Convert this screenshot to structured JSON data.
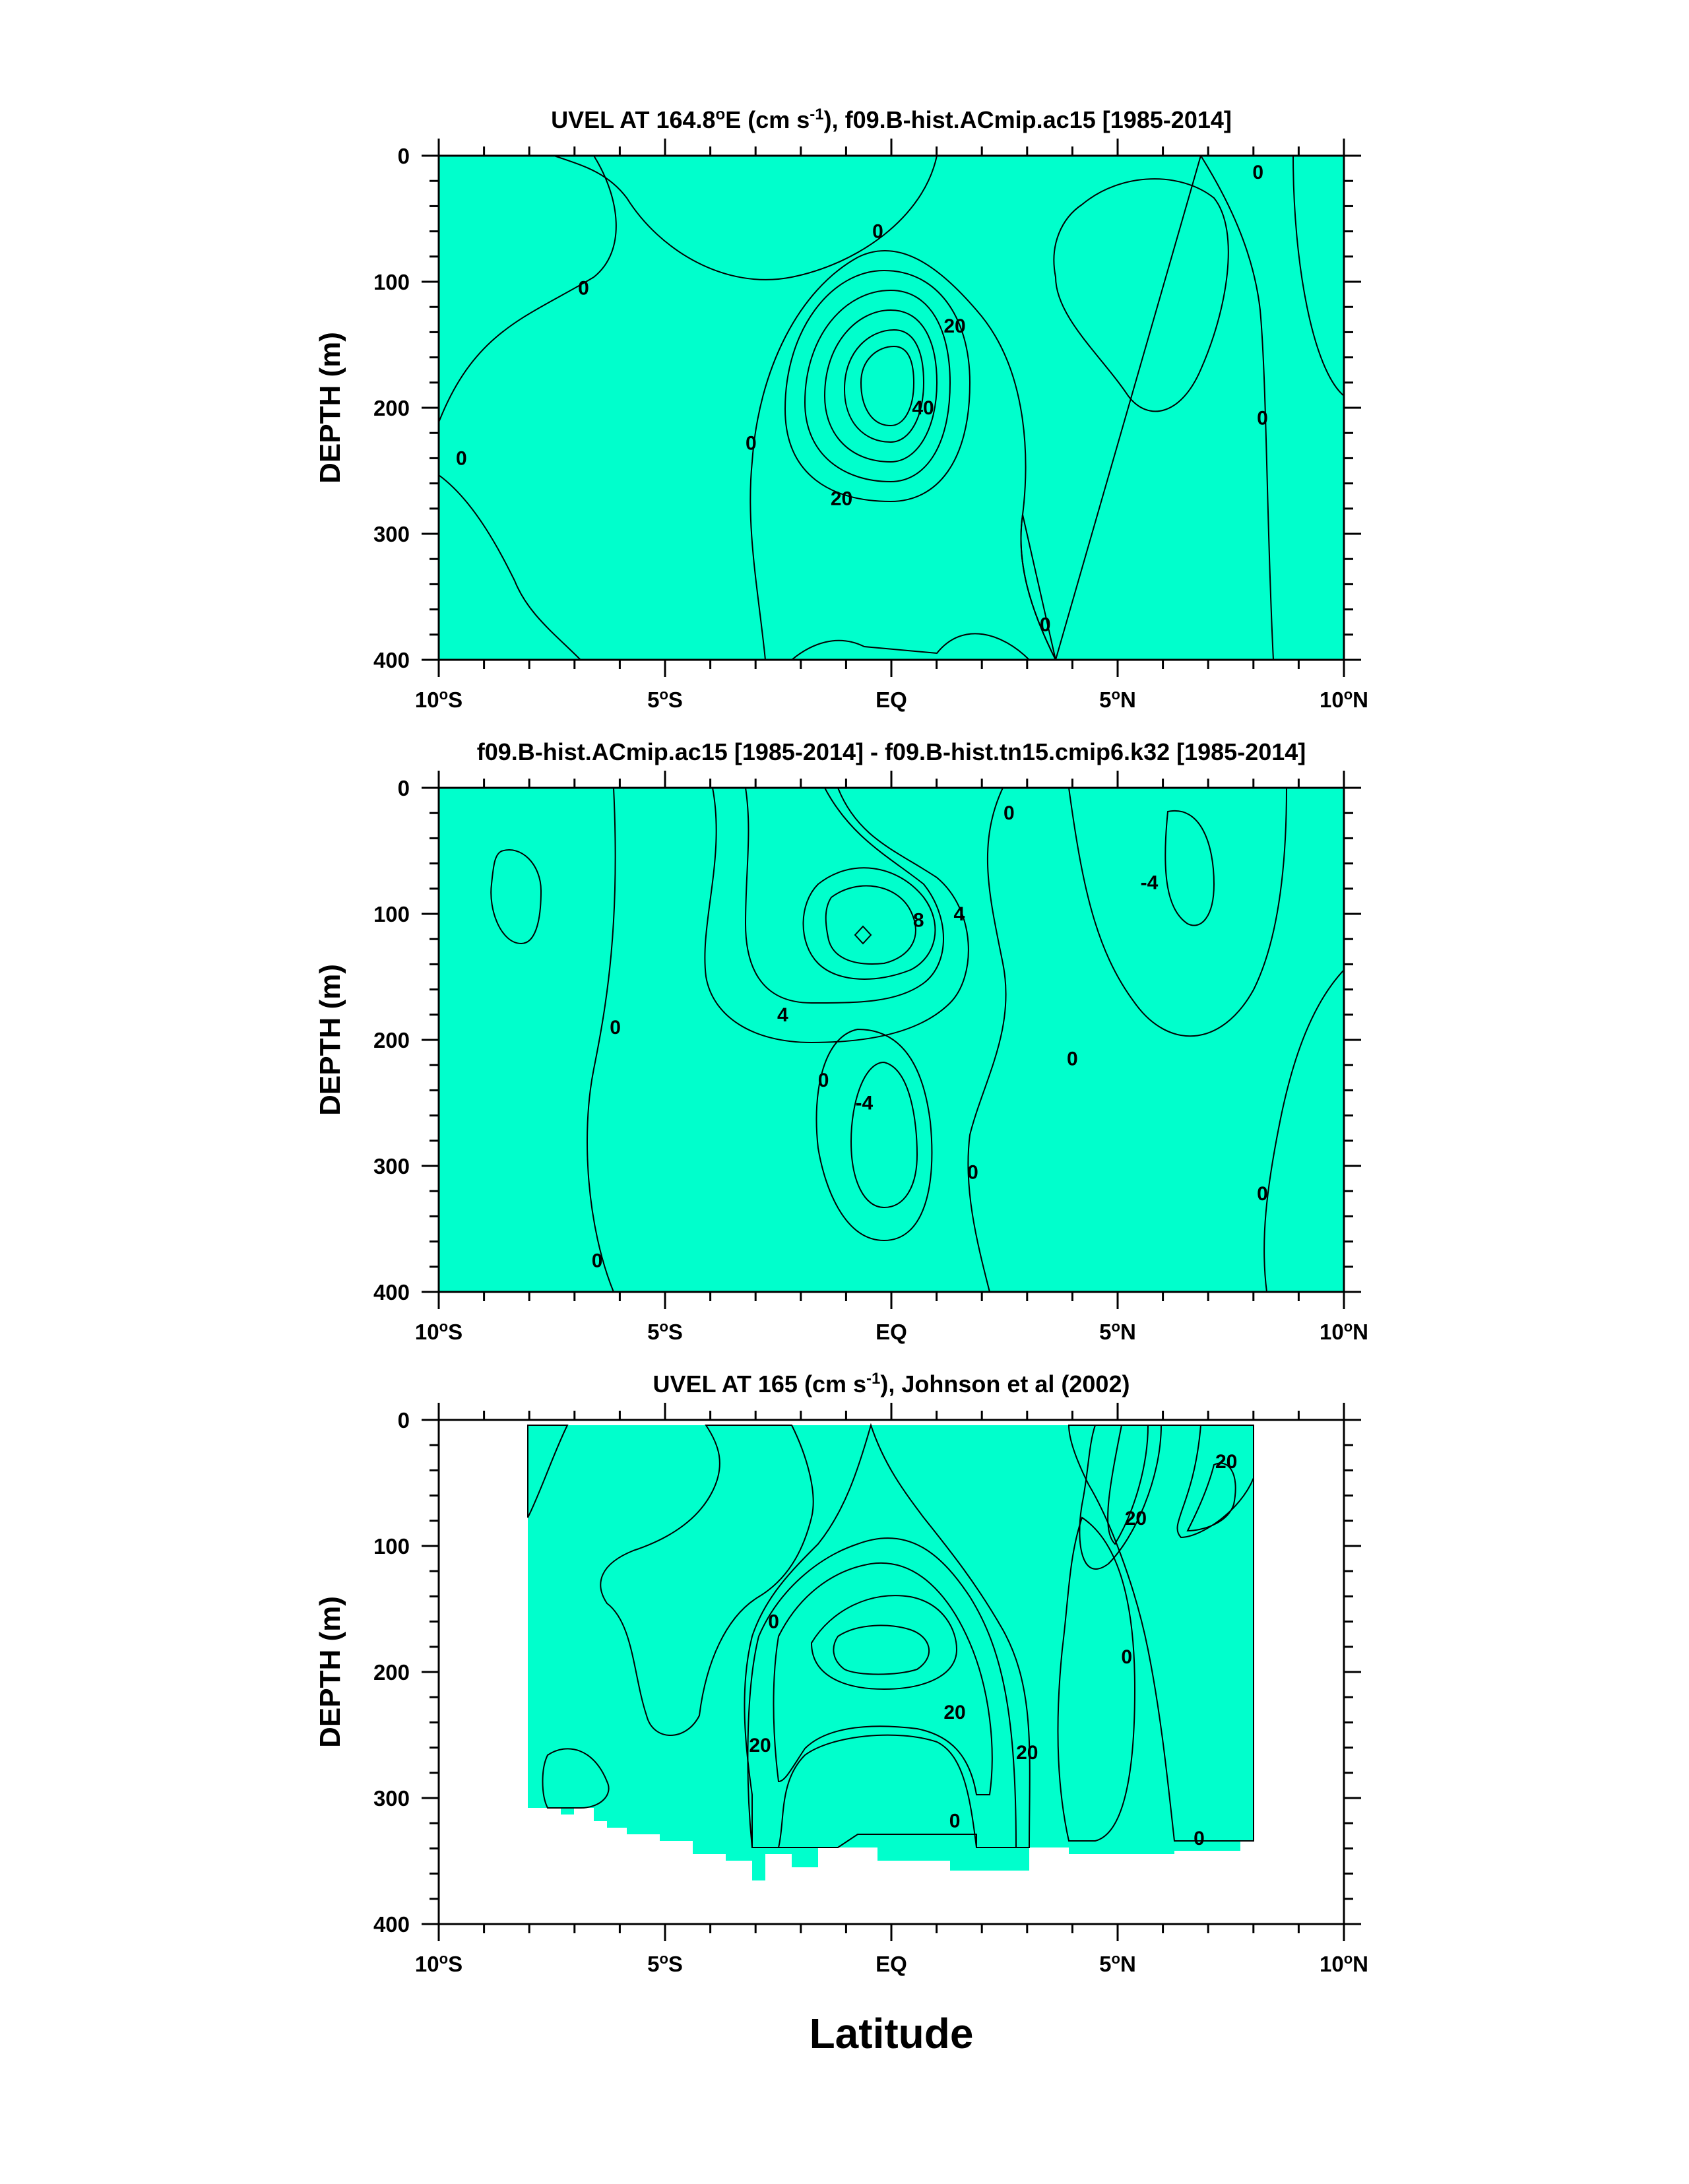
{
  "figure": {
    "x_axis_label": "Latitude",
    "colors": {
      "band_neg": "#00eeee",
      "band_zero": "#00ffcc",
      "band_low": "#00ee22",
      "band_mid": "#66ff00",
      "band_high": "#ffff00",
      "band_higher": "#ffcc33",
      "band_max": "#ff9933",
      "band_min": "#22ccff"
    }
  },
  "chart_data": [
    {
      "type": "contour",
      "id": "model",
      "title": "UVEL AT 164.8°E (cm s-1), f09.B-hist.ACmip.ac15 [1985-2014]",
      "title_parts": [
        "UVEL AT 164.8",
        "o",
        "E (cm s",
        "-1",
        "), f09.B-hist.ACmip.ac15 [1985-2014]"
      ],
      "ylabel": "DEPTH (m)",
      "xlim": [
        -10,
        10
      ],
      "ylim": [
        400,
        0
      ],
      "x_ticks": [
        -10,
        -5,
        0,
        5,
        10
      ],
      "x_tick_labels": [
        "10°S",
        "5°S",
        "EQ",
        "5°N",
        "10°N"
      ],
      "y_ticks": [
        0,
        100,
        200,
        300,
        400
      ],
      "y_tick_labels": [
        "0",
        "100",
        "200",
        "300",
        "400"
      ],
      "contour_labels": [
        {
          "text": "0",
          "lat": -6.8,
          "depth": 105
        },
        {
          "text": "0",
          "lat": -9.5,
          "depth": 240
        },
        {
          "text": "0",
          "lat": -3.1,
          "depth": 228
        },
        {
          "text": "0",
          "lat": -0.3,
          "depth": 60
        },
        {
          "text": "20",
          "lat": 1.4,
          "depth": 135
        },
        {
          "text": "40",
          "lat": 0.7,
          "depth": 200
        },
        {
          "text": "20",
          "lat": -1.1,
          "depth": 272
        },
        {
          "text": "0",
          "lat": 3.4,
          "depth": 372
        },
        {
          "text": "0",
          "lat": 8.1,
          "depth": 13
        },
        {
          "text": "0",
          "lat": 8.2,
          "depth": 208
        }
      ]
    },
    {
      "type": "contour",
      "id": "difference",
      "title": "f09.B-hist.ACmip.ac15 [1985-2014] - f09.B-hist.tn15.cmip6.k32 [1985-2014]",
      "ylabel": "DEPTH (m)",
      "xlim": [
        -10,
        10
      ],
      "ylim": [
        400,
        0
      ],
      "x_ticks": [
        -10,
        -5,
        0,
        5,
        10
      ],
      "x_tick_labels": [
        "10°S",
        "5°S",
        "EQ",
        "5°N",
        "10°N"
      ],
      "y_ticks": [
        0,
        100,
        200,
        300,
        400
      ],
      "y_tick_labels": [
        "0",
        "100",
        "200",
        "300",
        "400"
      ],
      "contour_labels": [
        {
          "text": "0",
          "lat": -6.1,
          "depth": 190
        },
        {
          "text": "0",
          "lat": -6.5,
          "depth": 375
        },
        {
          "text": "4",
          "lat": -2.4,
          "depth": 180
        },
        {
          "text": "8",
          "lat": 0.6,
          "depth": 105
        },
        {
          "text": "4",
          "lat": 1.5,
          "depth": 100
        },
        {
          "text": "0",
          "lat": 2.6,
          "depth": 20
        },
        {
          "text": "-4",
          "lat": 5.7,
          "depth": 75
        },
        {
          "text": "0",
          "lat": 4.0,
          "depth": 215
        },
        {
          "text": "0",
          "lat": -1.5,
          "depth": 232
        },
        {
          "text": "-4",
          "lat": -0.6,
          "depth": 250
        },
        {
          "text": "0",
          "lat": 1.8,
          "depth": 305
        },
        {
          "text": "0",
          "lat": 8.2,
          "depth": 322
        }
      ]
    },
    {
      "type": "contour",
      "id": "observed",
      "title": "UVEL AT 165 (cm s-1), Johnson et al (2002)",
      "title_parts": [
        "UVEL AT 165 (cm s",
        "-1",
        "), Johnson et al (2002)"
      ],
      "ylabel": "DEPTH (m)",
      "xlim": [
        -10,
        10
      ],
      "ylim": [
        400,
        0
      ],
      "data_lat_range": [
        -8,
        8
      ],
      "x_ticks": [
        -10,
        -5,
        0,
        5,
        10
      ],
      "x_tick_labels": [
        "10°S",
        "5°S",
        "EQ",
        "5°N",
        "10°N"
      ],
      "y_ticks": [
        0,
        100,
        200,
        300,
        400
      ],
      "y_tick_labels": [
        "0",
        "100",
        "200",
        "300",
        "400"
      ],
      "contour_labels": [
        {
          "text": "0",
          "lat": -2.6,
          "depth": 160
        },
        {
          "text": "20",
          "lat": -2.9,
          "depth": 258
        },
        {
          "text": "20",
          "lat": 1.4,
          "depth": 232
        },
        {
          "text": "20",
          "lat": 3.0,
          "depth": 264
        },
        {
          "text": "0",
          "lat": 1.4,
          "depth": 318
        },
        {
          "text": "20",
          "lat": 5.4,
          "depth": 78
        },
        {
          "text": "20",
          "lat": 7.4,
          "depth": 33
        },
        {
          "text": "0",
          "lat": 5.2,
          "depth": 188
        },
        {
          "text": "0",
          "lat": 6.8,
          "depth": 332
        }
      ]
    }
  ]
}
